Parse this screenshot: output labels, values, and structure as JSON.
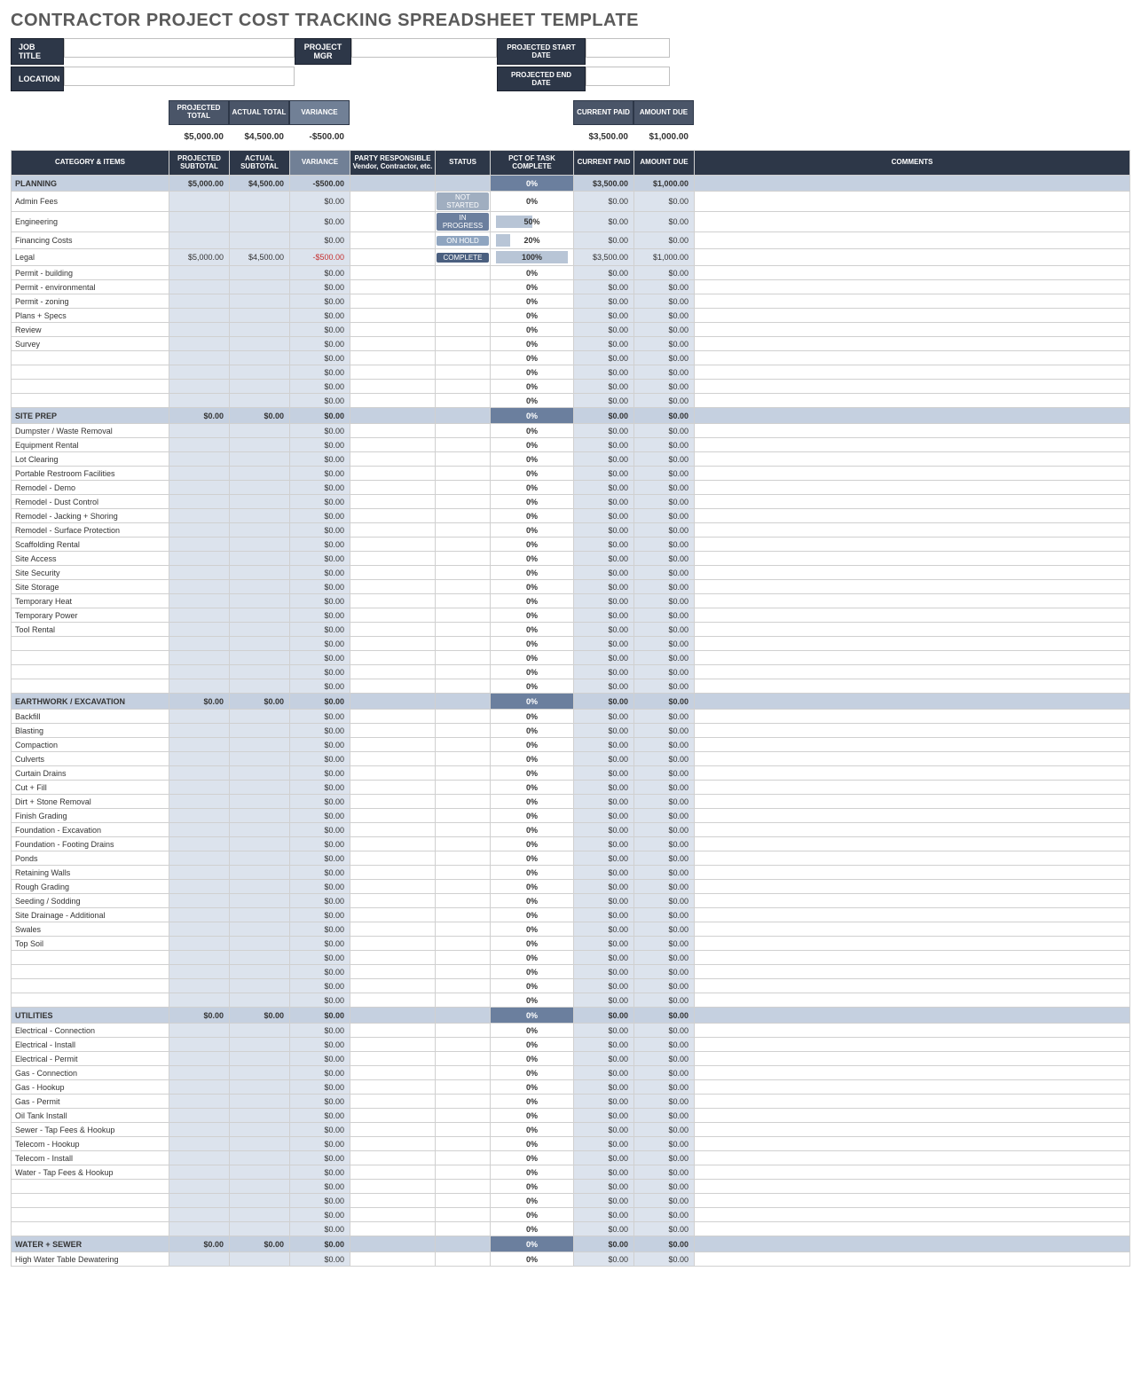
{
  "title": "CONTRACTOR PROJECT COST TRACKING SPREADSHEET TEMPLATE",
  "info_labels": {
    "job_title": "JOB TITLE",
    "location": "LOCATION",
    "project_mgr": "PROJECT MGR",
    "proj_start": "PROJECTED START DATE",
    "proj_end": "PROJECTED END DATE"
  },
  "summary_headers": {
    "proj_total": "PROJECTED TOTAL",
    "actual_total": "ACTUAL TOTAL",
    "variance": "VARIANCE",
    "current_paid": "CURRENT PAID",
    "amount_due": "AMOUNT DUE"
  },
  "summary_values": {
    "proj_total": "$5,000.00",
    "actual_total": "$4,500.00",
    "variance": "-$500.00",
    "current_paid": "$3,500.00",
    "amount_due": "$1,000.00"
  },
  "main_headers": {
    "category": "CATEGORY & ITEMS",
    "proj_sub": "PROJECTED SUBTOTAL",
    "actual_sub": "ACTUAL SUBTOTAL",
    "variance": "VARIANCE",
    "party": "PARTY RESPONSIBLE Vendor, Contractor, etc.",
    "status": "STATUS",
    "pct": "PCT OF TASK COMPLETE",
    "current_paid": "CURRENT PAID",
    "amount_due": "AMOUNT DUE",
    "comments": "COMMENTS"
  },
  "statuses": {
    "not_started": "NOT STARTED",
    "in_progress": "IN PROGRESS",
    "on_hold": "ON HOLD",
    "complete": "COMPLETE"
  },
  "sections": [
    {
      "name": "PLANNING",
      "proj": "$5,000.00",
      "actual": "$4,500.00",
      "variance": "-$500.00",
      "pct": "0%",
      "paid": "$3,500.00",
      "due": "$1,000.00",
      "items": [
        {
          "name": "Admin Fees",
          "variance": "$0.00",
          "status": "not_started",
          "pct": "0%",
          "pctv": 0,
          "paid": "$0.00",
          "due": "$0.00"
        },
        {
          "name": "Engineering",
          "variance": "$0.00",
          "status": "in_progress",
          "pct": "50%",
          "pctv": 50,
          "paid": "$0.00",
          "due": "$0.00"
        },
        {
          "name": "Financing Costs",
          "variance": "$0.00",
          "status": "on_hold",
          "pct": "20%",
          "pctv": 20,
          "paid": "$0.00",
          "due": "$0.00"
        },
        {
          "name": "Legal",
          "proj": "$5,000.00",
          "actual": "$4,500.00",
          "variance": "-$500.00",
          "variance_neg": true,
          "status": "complete",
          "pct": "100%",
          "pctv": 100,
          "paid": "$3,500.00",
          "due": "$1,000.00"
        },
        {
          "name": "Permit - building",
          "variance": "$0.00",
          "pct": "0%",
          "pctv": 0,
          "paid": "$0.00",
          "due": "$0.00"
        },
        {
          "name": "Permit - environmental",
          "variance": "$0.00",
          "pct": "0%",
          "pctv": 0,
          "paid": "$0.00",
          "due": "$0.00"
        },
        {
          "name": "Permit - zoning",
          "variance": "$0.00",
          "pct": "0%",
          "pctv": 0,
          "paid": "$0.00",
          "due": "$0.00"
        },
        {
          "name": "Plans + Specs",
          "variance": "$0.00",
          "pct": "0%",
          "pctv": 0,
          "paid": "$0.00",
          "due": "$0.00"
        },
        {
          "name": "Review",
          "variance": "$0.00",
          "pct": "0%",
          "pctv": 0,
          "paid": "$0.00",
          "due": "$0.00"
        },
        {
          "name": "Survey",
          "variance": "$0.00",
          "pct": "0%",
          "pctv": 0,
          "paid": "$0.00",
          "due": "$0.00"
        },
        {
          "name": "",
          "variance": "$0.00",
          "pct": "0%",
          "pctv": 0,
          "paid": "$0.00",
          "due": "$0.00"
        },
        {
          "name": "",
          "variance": "$0.00",
          "pct": "0%",
          "pctv": 0,
          "paid": "$0.00",
          "due": "$0.00"
        },
        {
          "name": "",
          "variance": "$0.00",
          "pct": "0%",
          "pctv": 0,
          "paid": "$0.00",
          "due": "$0.00"
        },
        {
          "name": "",
          "variance": "$0.00",
          "pct": "0%",
          "pctv": 0,
          "paid": "$0.00",
          "due": "$0.00"
        }
      ]
    },
    {
      "name": "SITE PREP",
      "proj": "$0.00",
      "actual": "$0.00",
      "variance": "$0.00",
      "pct": "0%",
      "paid": "$0.00",
      "due": "$0.00",
      "items": [
        {
          "name": "Dumpster / Waste Removal",
          "variance": "$0.00",
          "pct": "0%",
          "pctv": 0,
          "paid": "$0.00",
          "due": "$0.00"
        },
        {
          "name": "Equipment Rental",
          "variance": "$0.00",
          "pct": "0%",
          "pctv": 0,
          "paid": "$0.00",
          "due": "$0.00"
        },
        {
          "name": "Lot Clearing",
          "variance": "$0.00",
          "pct": "0%",
          "pctv": 0,
          "paid": "$0.00",
          "due": "$0.00"
        },
        {
          "name": "Portable Restroom Facilities",
          "variance": "$0.00",
          "pct": "0%",
          "pctv": 0,
          "paid": "$0.00",
          "due": "$0.00"
        },
        {
          "name": "Remodel - Demo",
          "variance": "$0.00",
          "pct": "0%",
          "pctv": 0,
          "paid": "$0.00",
          "due": "$0.00"
        },
        {
          "name": "Remodel - Dust Control",
          "variance": "$0.00",
          "pct": "0%",
          "pctv": 0,
          "paid": "$0.00",
          "due": "$0.00"
        },
        {
          "name": "Remodel - Jacking + Shoring",
          "variance": "$0.00",
          "pct": "0%",
          "pctv": 0,
          "paid": "$0.00",
          "due": "$0.00"
        },
        {
          "name": "Remodel - Surface Protection",
          "variance": "$0.00",
          "pct": "0%",
          "pctv": 0,
          "paid": "$0.00",
          "due": "$0.00"
        },
        {
          "name": "Scaffolding Rental",
          "variance": "$0.00",
          "pct": "0%",
          "pctv": 0,
          "paid": "$0.00",
          "due": "$0.00"
        },
        {
          "name": "Site Access",
          "variance": "$0.00",
          "pct": "0%",
          "pctv": 0,
          "paid": "$0.00",
          "due": "$0.00"
        },
        {
          "name": "Site Security",
          "variance": "$0.00",
          "pct": "0%",
          "pctv": 0,
          "paid": "$0.00",
          "due": "$0.00"
        },
        {
          "name": "Site Storage",
          "variance": "$0.00",
          "pct": "0%",
          "pctv": 0,
          "paid": "$0.00",
          "due": "$0.00"
        },
        {
          "name": "Temporary Heat",
          "variance": "$0.00",
          "pct": "0%",
          "pctv": 0,
          "paid": "$0.00",
          "due": "$0.00"
        },
        {
          "name": "Temporary Power",
          "variance": "$0.00",
          "pct": "0%",
          "pctv": 0,
          "paid": "$0.00",
          "due": "$0.00"
        },
        {
          "name": "Tool Rental",
          "variance": "$0.00",
          "pct": "0%",
          "pctv": 0,
          "paid": "$0.00",
          "due": "$0.00"
        },
        {
          "name": "",
          "variance": "$0.00",
          "pct": "0%",
          "pctv": 0,
          "paid": "$0.00",
          "due": "$0.00"
        },
        {
          "name": "",
          "variance": "$0.00",
          "pct": "0%",
          "pctv": 0,
          "paid": "$0.00",
          "due": "$0.00"
        },
        {
          "name": "",
          "variance": "$0.00",
          "pct": "0%",
          "pctv": 0,
          "paid": "$0.00",
          "due": "$0.00"
        },
        {
          "name": "",
          "variance": "$0.00",
          "pct": "0%",
          "pctv": 0,
          "paid": "$0.00",
          "due": "$0.00"
        }
      ]
    },
    {
      "name": "EARTHWORK / EXCAVATION",
      "proj": "$0.00",
      "actual": "$0.00",
      "variance": "$0.00",
      "pct": "0%",
      "paid": "$0.00",
      "due": "$0.00",
      "items": [
        {
          "name": "Backfill",
          "variance": "$0.00",
          "pct": "0%",
          "pctv": 0,
          "paid": "$0.00",
          "due": "$0.00"
        },
        {
          "name": "Blasting",
          "variance": "$0.00",
          "pct": "0%",
          "pctv": 0,
          "paid": "$0.00",
          "due": "$0.00"
        },
        {
          "name": "Compaction",
          "variance": "$0.00",
          "pct": "0%",
          "pctv": 0,
          "paid": "$0.00",
          "due": "$0.00"
        },
        {
          "name": "Culverts",
          "variance": "$0.00",
          "pct": "0%",
          "pctv": 0,
          "paid": "$0.00",
          "due": "$0.00"
        },
        {
          "name": "Curtain Drains",
          "variance": "$0.00",
          "pct": "0%",
          "pctv": 0,
          "paid": "$0.00",
          "due": "$0.00"
        },
        {
          "name": "Cut + Fill",
          "variance": "$0.00",
          "pct": "0%",
          "pctv": 0,
          "paid": "$0.00",
          "due": "$0.00"
        },
        {
          "name": "Dirt + Stone Removal",
          "variance": "$0.00",
          "pct": "0%",
          "pctv": 0,
          "paid": "$0.00",
          "due": "$0.00"
        },
        {
          "name": "Finish Grading",
          "variance": "$0.00",
          "pct": "0%",
          "pctv": 0,
          "paid": "$0.00",
          "due": "$0.00"
        },
        {
          "name": "Foundation - Excavation",
          "variance": "$0.00",
          "pct": "0%",
          "pctv": 0,
          "paid": "$0.00",
          "due": "$0.00"
        },
        {
          "name": "Foundation - Footing Drains",
          "variance": "$0.00",
          "pct": "0%",
          "pctv": 0,
          "paid": "$0.00",
          "due": "$0.00"
        },
        {
          "name": "Ponds",
          "variance": "$0.00",
          "pct": "0%",
          "pctv": 0,
          "paid": "$0.00",
          "due": "$0.00"
        },
        {
          "name": "Retaining Walls",
          "variance": "$0.00",
          "pct": "0%",
          "pctv": 0,
          "paid": "$0.00",
          "due": "$0.00"
        },
        {
          "name": "Rough Grading",
          "variance": "$0.00",
          "pct": "0%",
          "pctv": 0,
          "paid": "$0.00",
          "due": "$0.00"
        },
        {
          "name": "Seeding / Sodding",
          "variance": "$0.00",
          "pct": "0%",
          "pctv": 0,
          "paid": "$0.00",
          "due": "$0.00"
        },
        {
          "name": "Site Drainage - Additional",
          "variance": "$0.00",
          "pct": "0%",
          "pctv": 0,
          "paid": "$0.00",
          "due": "$0.00"
        },
        {
          "name": "Swales",
          "variance": "$0.00",
          "pct": "0%",
          "pctv": 0,
          "paid": "$0.00",
          "due": "$0.00"
        },
        {
          "name": "Top Soil",
          "variance": "$0.00",
          "pct": "0%",
          "pctv": 0,
          "paid": "$0.00",
          "due": "$0.00"
        },
        {
          "name": "",
          "variance": "$0.00",
          "pct": "0%",
          "pctv": 0,
          "paid": "$0.00",
          "due": "$0.00"
        },
        {
          "name": "",
          "variance": "$0.00",
          "pct": "0%",
          "pctv": 0,
          "paid": "$0.00",
          "due": "$0.00"
        },
        {
          "name": "",
          "variance": "$0.00",
          "pct": "0%",
          "pctv": 0,
          "paid": "$0.00",
          "due": "$0.00"
        },
        {
          "name": "",
          "variance": "$0.00",
          "pct": "0%",
          "pctv": 0,
          "paid": "$0.00",
          "due": "$0.00"
        }
      ]
    },
    {
      "name": "UTILITIES",
      "proj": "$0.00",
      "actual": "$0.00",
      "variance": "$0.00",
      "pct": "0%",
      "paid": "$0.00",
      "due": "$0.00",
      "items": [
        {
          "name": "Electrical - Connection",
          "variance": "$0.00",
          "pct": "0%",
          "pctv": 0,
          "paid": "$0.00",
          "due": "$0.00"
        },
        {
          "name": "Electrical - Install",
          "variance": "$0.00",
          "pct": "0%",
          "pctv": 0,
          "paid": "$0.00",
          "due": "$0.00"
        },
        {
          "name": "Electrical - Permit",
          "variance": "$0.00",
          "pct": "0%",
          "pctv": 0,
          "paid": "$0.00",
          "due": "$0.00"
        },
        {
          "name": "Gas - Connection",
          "variance": "$0.00",
          "pct": "0%",
          "pctv": 0,
          "paid": "$0.00",
          "due": "$0.00"
        },
        {
          "name": "Gas - Hookup",
          "variance": "$0.00",
          "pct": "0%",
          "pctv": 0,
          "paid": "$0.00",
          "due": "$0.00"
        },
        {
          "name": "Gas - Permit",
          "variance": "$0.00",
          "pct": "0%",
          "pctv": 0,
          "paid": "$0.00",
          "due": "$0.00"
        },
        {
          "name": "Oil Tank Install",
          "variance": "$0.00",
          "pct": "0%",
          "pctv": 0,
          "paid": "$0.00",
          "due": "$0.00"
        },
        {
          "name": "Sewer - Tap Fees & Hookup",
          "variance": "$0.00",
          "pct": "0%",
          "pctv": 0,
          "paid": "$0.00",
          "due": "$0.00"
        },
        {
          "name": "Telecom - Hookup",
          "variance": "$0.00",
          "pct": "0%",
          "pctv": 0,
          "paid": "$0.00",
          "due": "$0.00"
        },
        {
          "name": "Telecom - Install",
          "variance": "$0.00",
          "pct": "0%",
          "pctv": 0,
          "paid": "$0.00",
          "due": "$0.00"
        },
        {
          "name": "Water - Tap Fees & Hookup",
          "variance": "$0.00",
          "pct": "0%",
          "pctv": 0,
          "paid": "$0.00",
          "due": "$0.00"
        },
        {
          "name": "",
          "variance": "$0.00",
          "pct": "0%",
          "pctv": 0,
          "paid": "$0.00",
          "due": "$0.00"
        },
        {
          "name": "",
          "variance": "$0.00",
          "pct": "0%",
          "pctv": 0,
          "paid": "$0.00",
          "due": "$0.00"
        },
        {
          "name": "",
          "variance": "$0.00",
          "pct": "0%",
          "pctv": 0,
          "paid": "$0.00",
          "due": "$0.00"
        },
        {
          "name": "",
          "variance": "$0.00",
          "pct": "0%",
          "pctv": 0,
          "paid": "$0.00",
          "due": "$0.00"
        }
      ]
    },
    {
      "name": "WATER + SEWER",
      "proj": "$0.00",
      "actual": "$0.00",
      "variance": "$0.00",
      "pct": "0%",
      "paid": "$0.00",
      "due": "$0.00",
      "items": [
        {
          "name": "High Water Table Dewatering",
          "variance": "$0.00",
          "pct": "0%",
          "pctv": 0,
          "paid": "$0.00",
          "due": "$0.00"
        }
      ]
    }
  ]
}
